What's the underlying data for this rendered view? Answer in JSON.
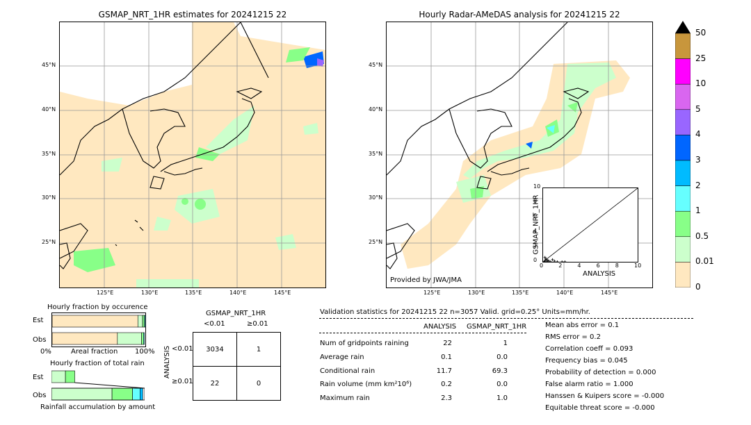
{
  "left_panel": {
    "title": "GSMAP_NRT_1HR estimates for 20241215 22",
    "lat_labels": [
      "45°N",
      "40°N",
      "35°N",
      "30°N",
      "25°N"
    ],
    "lon_labels": [
      "125°E",
      "130°E",
      "135°E",
      "140°E",
      "145°E"
    ]
  },
  "right_panel": {
    "title": "Hourly Radar-AMeDAS analysis for 20241215 22",
    "lat_labels": [
      "45°N",
      "40°N",
      "35°N",
      "30°N",
      "25°N"
    ],
    "lon_labels": [
      "125°E",
      "130°E",
      "135°E",
      "140°E",
      "145°E"
    ],
    "credit": "Provided by JWA/JMA"
  },
  "colorbar": {
    "labels": [
      "50",
      "25",
      "10",
      "5",
      "4",
      "3",
      "2",
      "1",
      "0.5",
      "0.01",
      "0"
    ],
    "colors": [
      "#c8963c",
      "#ff00ff",
      "#d966f0",
      "#9966ff",
      "#0066ff",
      "#00bbff",
      "#66ffff",
      "#88ff88",
      "#ccffcc",
      "#ffe8c0"
    ],
    "over_color": "#000000"
  },
  "chart_data": [
    {
      "type": "scatter",
      "title": "",
      "xlabel": "ANALYSIS",
      "ylabel": "GSMAP_NRT_1HR",
      "xlim": [
        0,
        10
      ],
      "ylim": [
        0,
        10
      ],
      "ticks": [
        "0",
        "2",
        "4",
        "6",
        "8",
        "10"
      ],
      "x": [
        0.1,
        0.2,
        0.3,
        0.4,
        0.5,
        0.6,
        0.8,
        1.0,
        1.2,
        1.5,
        2.0,
        2.3,
        0.2,
        0.3
      ],
      "y": [
        0.0,
        0.1,
        0.3,
        0.0,
        0.2,
        0.1,
        0.0,
        0.3,
        0.1,
        0.0,
        0.0,
        0.0,
        0.6,
        0.4
      ]
    },
    {
      "type": "bar",
      "title": "Hourly fraction by occurence",
      "categories": [
        "Est",
        "Obs"
      ],
      "xlabel": "Areal fraction",
      "x_tick_labels": [
        "0%",
        "100%"
      ],
      "series": [
        {
          "color": "#ffe8c0",
          "values": [
            0.92,
            0.7
          ]
        },
        {
          "color": "#ccffcc",
          "values": [
            0.05,
            0.26
          ]
        },
        {
          "color": "#88ff88",
          "values": [
            0.02,
            0.02
          ]
        },
        {
          "color": "#66ffff",
          "values": [
            0.01,
            0.01
          ]
        }
      ]
    },
    {
      "type": "bar",
      "title": "Hourly fraction of total rain",
      "categories": [
        "Est",
        "Obs"
      ],
      "xlabel": "Rainfall accumulation by amount",
      "series": [
        {
          "color": "#ccffcc",
          "values": [
            0.15,
            0.65
          ]
        },
        {
          "color": "#88ff88",
          "values": [
            0.1,
            0.22
          ]
        },
        {
          "color": "#66ffff",
          "values": [
            0.0,
            0.08
          ]
        },
        {
          "color": "#00bbff",
          "values": [
            0.0,
            0.03
          ]
        }
      ]
    }
  ],
  "contingency": {
    "title": "GSMAP_NRT_1HR",
    "col_labels": [
      "<0.01",
      "≥0.01"
    ],
    "row_labels": [
      "<0.01",
      "≥0.01"
    ],
    "side_label": "ANALYSIS",
    "cells": [
      [
        "3034",
        "1"
      ],
      [
        "22",
        "0"
      ]
    ]
  },
  "validation": {
    "header": "Validation statistics for 20241215 22  n=3057 Valid. grid=0.25° Units=mm/hr.",
    "col_analysis": "ANALYSIS",
    "col_gsmap": "GSMAP_NRT_1HR",
    "rows": [
      {
        "label": "Num of gridpoints raining",
        "analysis": "22",
        "gsmap": "1"
      },
      {
        "label": "Average rain",
        "analysis": "0.1",
        "gsmap": "0.0"
      },
      {
        "label": "Conditional rain",
        "analysis": "11.7",
        "gsmap": "69.3"
      },
      {
        "label": "Rain volume (mm km²10⁶)",
        "analysis": "0.2",
        "gsmap": "0.0"
      },
      {
        "label": "Maximum rain",
        "analysis": "2.3",
        "gsmap": "1.0"
      }
    ],
    "scores": [
      "Mean abs error =    0.1",
      "RMS error =    0.2",
      "Correlation coeff =  0.093",
      "Frequency bias =  0.045",
      "Probability of detection =  0.000",
      "False alarm ratio =  1.000",
      "Hanssen & Kuipers score = -0.000",
      "Equitable threat score = -0.000"
    ]
  }
}
